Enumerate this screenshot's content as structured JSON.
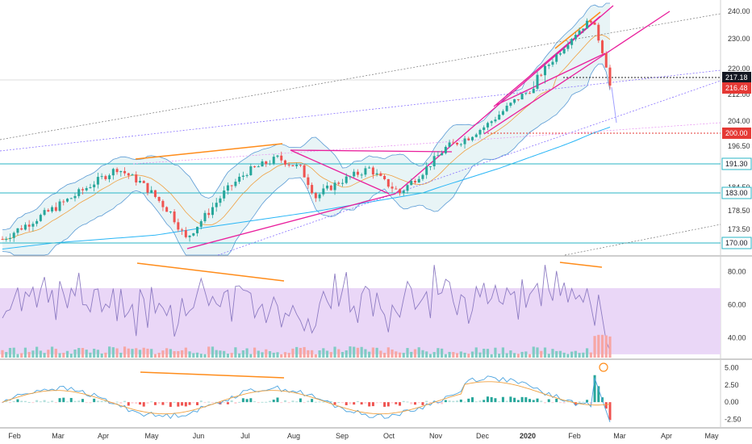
{
  "colors": {
    "up": "#26a69a",
    "down": "#ef5350",
    "bb": "#5b9bd5",
    "bb_fill": "#e8f4f6",
    "ma_fast": "#f0a040",
    "ma_mid": "#c8a070",
    "ma_long": "#29b6f6",
    "trend_magenta": "#e91e9c",
    "divergence_orange": "#ff8c1a",
    "hline_cyan": "#29b6c6",
    "support_red": "#e53935",
    "rsi_band": "#ead7f7",
    "rsi_line": "#8e7cc3",
    "macd_line": "#4aa3df",
    "signal_line": "#f0a040",
    "tag_dark": "#131722"
  },
  "chart_data": [
    {
      "type": "candlestick",
      "panel": "price",
      "y_ticks": [
        "240.00",
        "230.00",
        "220.00",
        "212.00",
        "204.00",
        "196.50",
        "191.30",
        "184.50",
        "178.50",
        "173.50",
        "170.00"
      ],
      "y_tick_values": [
        240,
        230,
        220,
        212,
        204,
        196.5,
        191.3,
        184.5,
        178.5,
        173.5,
        170
      ],
      "price_tags": [
        {
          "label": "217.18",
          "value": 217.18,
          "style": "dark"
        },
        {
          "label": "216.48",
          "value": 216.48,
          "style": "red"
        },
        {
          "label": "200.00",
          "value": 200.0,
          "style": "red"
        },
        {
          "label": "191.30",
          "value": 191.3,
          "style": "cyan-outline"
        },
        {
          "label": "183.00",
          "value": 183.0,
          "style": "cyan-outline"
        },
        {
          "label": "170.00",
          "value": 170.0,
          "style": "cyan-outline"
        }
      ],
      "horizontal_levels": [
        191.3,
        183.0,
        170.0
      ],
      "support_level": 200.0,
      "reference_level": 217.18,
      "overlays": [
        "bollinger_bands",
        "moving_averages",
        "trendlines",
        "rising_wedge"
      ],
      "ylim": [
        168,
        242
      ]
    },
    {
      "type": "line",
      "panel": "rsi",
      "y_ticks": [
        "80.00",
        "60.00",
        "40.00"
      ],
      "y_tick_values": [
        80,
        60,
        40
      ],
      "band": [
        30,
        70
      ],
      "ylim": [
        28,
        88
      ]
    },
    {
      "type": "bar",
      "panel": "macd",
      "y_ticks": [
        "5.00",
        "2.50",
        "0.00",
        "-2.50"
      ],
      "y_tick_values": [
        5,
        2.5,
        0,
        -2.5
      ],
      "series": [
        {
          "values": []
        },
        {
          "values": []
        }
      ],
      "ylim": [
        -3.5,
        6
      ]
    }
  ],
  "x_axis": {
    "labels": [
      "Feb",
      "Mar",
      "Apr",
      "May",
      "Jun",
      "Jul",
      "Aug",
      "Sep",
      "Oct",
      "Nov",
      "Dec",
      "2020",
      "Feb",
      "Mar",
      "Apr",
      "May"
    ]
  }
}
